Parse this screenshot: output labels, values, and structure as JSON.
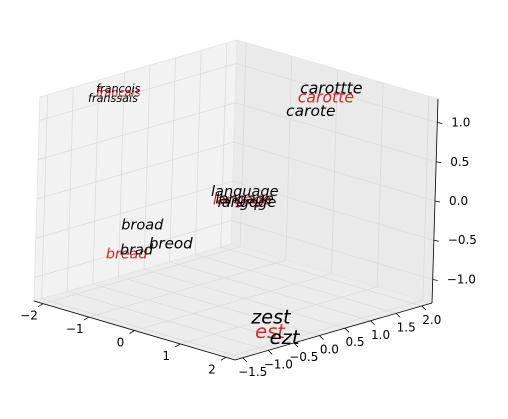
{
  "chart_data": {
    "type": "scatter",
    "projection": "3d",
    "grid": true,
    "pane_color": "#f2f2f2",
    "grid_color": "#dcdcdc",
    "axes": {
      "x": {
        "ticks": [
          "−2",
          "−1",
          "0",
          "1",
          "2"
        ]
      },
      "y": {
        "ticks": [
          "−1.5",
          "−1.0",
          "−0.5",
          "0.0",
          "0.5",
          "1.0",
          "1.5",
          "2.0"
        ]
      },
      "z": {
        "ticks": [
          "−1.0",
          "−0.5",
          "0.0",
          "0.5",
          "1.0"
        ]
      }
    },
    "colors": {
      "highlight": "#d62728",
      "default": "#000000"
    },
    "points": [
      {
        "label": "français",
        "highlight": true,
        "x": -2.1,
        "y": -0.2,
        "z": 1.05
      },
      {
        "label": "francois",
        "highlight": false,
        "x": -2.1,
        "y": -0.2,
        "z": 1.1
      },
      {
        "label": "franssais",
        "highlight": false,
        "x": -2.1,
        "y": -0.3,
        "z": 1.0
      },
      {
        "label": "carottte",
        "highlight": false,
        "x": 0.1,
        "y": 2.0,
        "z": 1.05
      },
      {
        "label": "carotte",
        "highlight": true,
        "x": 0.1,
        "y": 1.9,
        "z": 0.95
      },
      {
        "label": "carote",
        "highlight": false,
        "x": 0.0,
        "y": 1.7,
        "z": 0.8
      },
      {
        "label": "language",
        "highlight": false,
        "x": -0.5,
        "y": 0.9,
        "z": -0.15
      },
      {
        "label": "langage",
        "highlight": true,
        "x": -0.5,
        "y": 0.85,
        "z": -0.25
      },
      {
        "label": "langage",
        "highlight": false,
        "x": -0.5,
        "y": 0.9,
        "z": -0.25
      },
      {
        "label": "langqge",
        "highlight": false,
        "x": -0.5,
        "y": 0.95,
        "z": -0.3
      },
      {
        "label": "broad",
        "highlight": false,
        "x": -0.5,
        "y": -1.1,
        "z": -0.2
      },
      {
        "label": "breod",
        "highlight": false,
        "x": -0.2,
        "y": -0.8,
        "z": -0.45
      },
      {
        "label": "brad",
        "highlight": false,
        "x": -0.5,
        "y": -1.2,
        "z": -0.5
      },
      {
        "label": "bread",
        "highlight": true,
        "x": -0.6,
        "y": -1.3,
        "z": -0.55
      },
      {
        "label": "zest",
        "highlight": false,
        "x": 1.8,
        "y": -0.6,
        "z": -1.1
      },
      {
        "label": "est",
        "highlight": true,
        "x": 1.9,
        "y": -0.7,
        "z": -1.25
      },
      {
        "label": "ezt",
        "highlight": false,
        "x": 2.0,
        "y": -0.5,
        "z": -1.35
      }
    ]
  }
}
